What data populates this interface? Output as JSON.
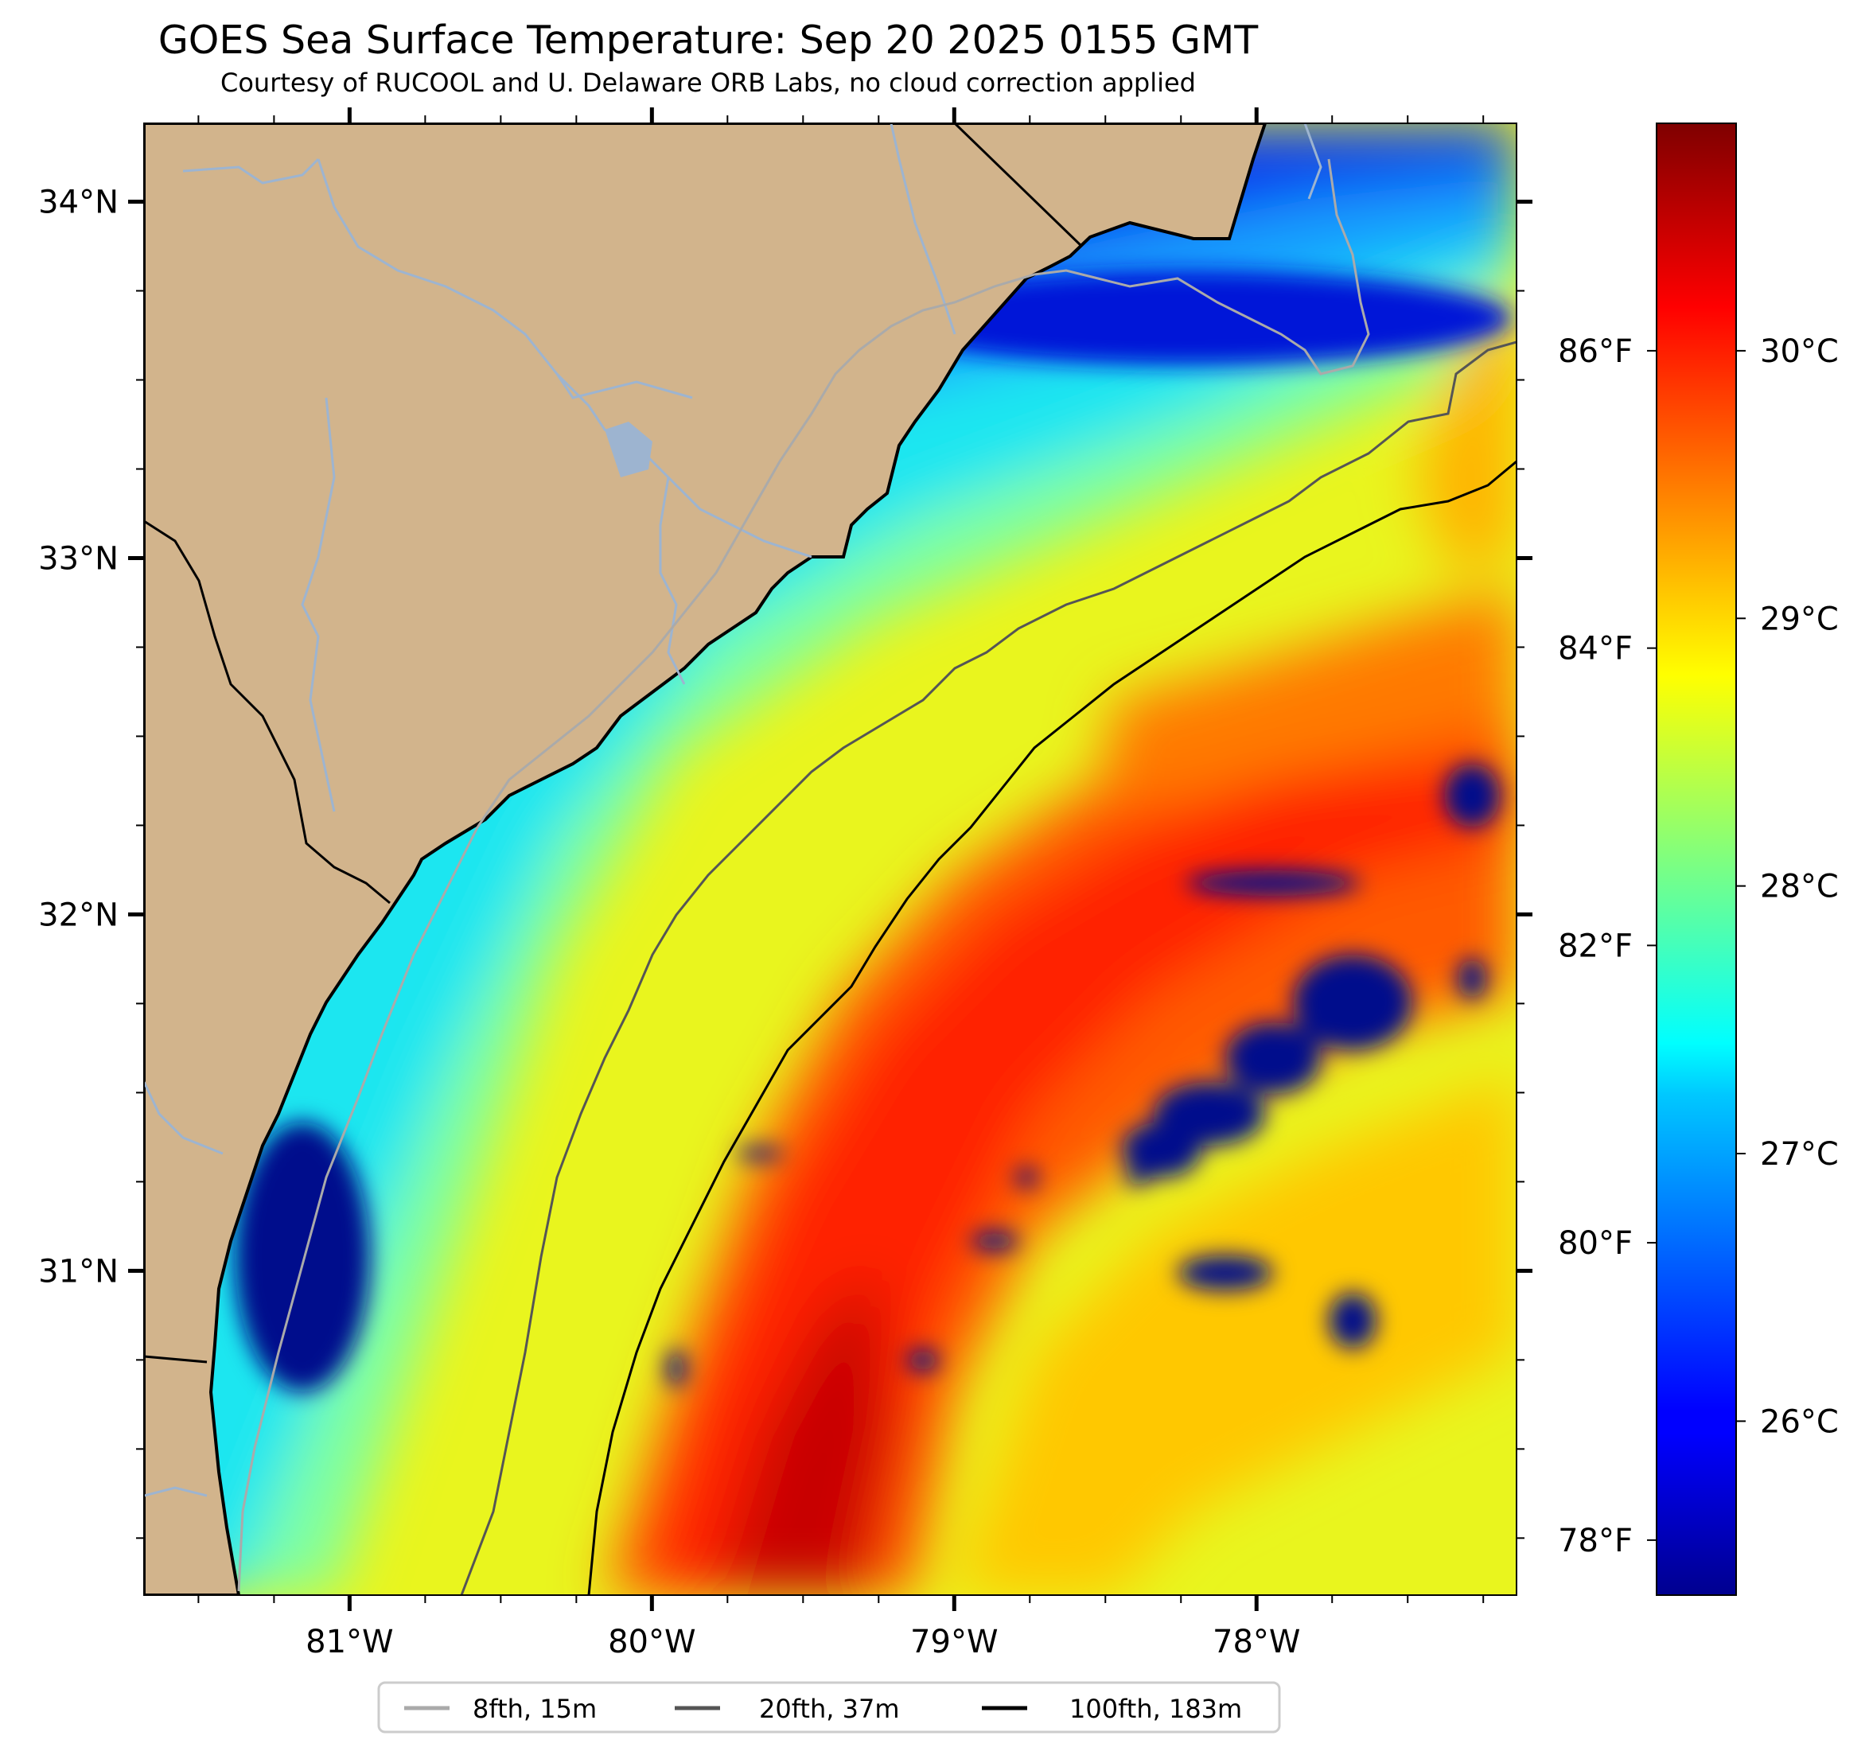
{
  "title": "GOES Sea Surface Temperature: Sep 20 2025 0155 GMT",
  "subtitle": "Courtesy of RUCOOL and U. Delaware ORB Labs, no cloud correction applied",
  "map": {
    "lon_range": [
      -81.68,
      -77.14
    ],
    "lat_range": [
      30.09,
      34.22
    ],
    "land_color": "#d2b48c",
    "colormap": "jet",
    "lon_ticks": [
      {
        "value": -81,
        "label": "81°W"
      },
      {
        "value": -80,
        "label": "80°W"
      },
      {
        "value": -79,
        "label": "79°W"
      },
      {
        "value": -78,
        "label": "78°W"
      }
    ],
    "lat_ticks": [
      {
        "value": 34,
        "label": "34°N"
      },
      {
        "value": 33,
        "label": "33°N"
      },
      {
        "value": 32,
        "label": "32°N"
      },
      {
        "value": 31,
        "label": "31°N"
      }
    ]
  },
  "colorbar": {
    "cmap": "jet",
    "range_c": [
      25.35,
      30.85
    ],
    "celsius_ticks": [
      {
        "value": 26,
        "label": "26°C"
      },
      {
        "value": 27,
        "label": "27°C"
      },
      {
        "value": 28,
        "label": "28°C"
      },
      {
        "value": 29,
        "label": "29°C"
      },
      {
        "value": 30,
        "label": "30°C"
      }
    ],
    "fahrenheit_ticks": [
      {
        "value": 78,
        "label": "78°F"
      },
      {
        "value": 80,
        "label": "80°F"
      },
      {
        "value": 82,
        "label": "82°F"
      },
      {
        "value": 84,
        "label": "84°F"
      },
      {
        "value": 86,
        "label": "86°F"
      }
    ]
  },
  "legend": {
    "placement": "bottom-center",
    "items": [
      {
        "label": "8fth, 15m",
        "color": "#aaaaaa"
      },
      {
        "label": "20fth, 37m",
        "color": "#555555"
      },
      {
        "label": "100fth, 183m",
        "color": "#000000"
      }
    ]
  }
}
